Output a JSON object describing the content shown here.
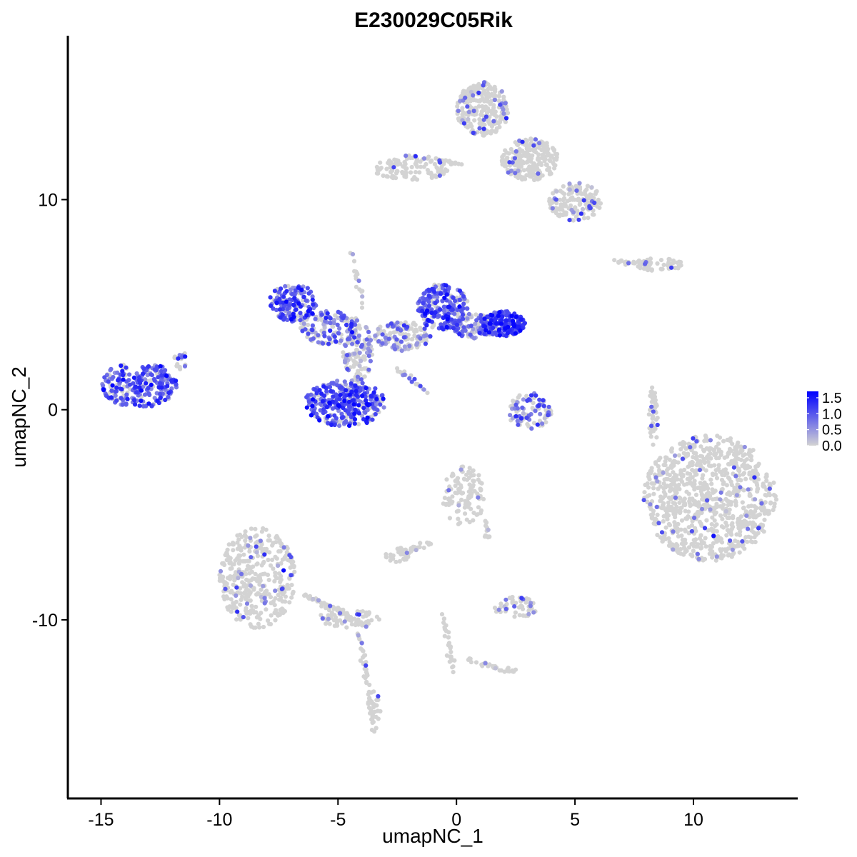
{
  "chart_data": {
    "type": "scatter",
    "title": "E230029C05Rik",
    "xlabel": "umapNC_1",
    "ylabel": "umapNC_2",
    "xlim": [
      -16.4,
      14.4
    ],
    "ylim": [
      -18.5,
      17.8
    ],
    "x_ticks": [
      -15,
      -10,
      -5,
      0,
      5,
      10
    ],
    "x_tick_labels": [
      "-15",
      "-10",
      "-5",
      "0",
      "5",
      "10"
    ],
    "y_ticks": [
      -10,
      0,
      10
    ],
    "y_tick_labels": [
      "-10",
      "0",
      "10"
    ],
    "grid": false,
    "legend_position": "right",
    "colorbar": {
      "min": 0.0,
      "max": 1.7,
      "ticks": [
        0.0,
        0.5,
        1.0,
        1.5
      ],
      "tick_labels": [
        "0.0",
        "0.5",
        "1.0",
        "1.5"
      ],
      "low_color": "#d3d3d3",
      "high_color": "#0000ff"
    },
    "clusters": [
      {
        "cx": -13.4,
        "cy": 1.2,
        "rx": 1.6,
        "ry": 1.1,
        "n": 260,
        "expr": 0.95,
        "frac": 0.75
      },
      {
        "cx": -11.6,
        "cy": 2.4,
        "rx": 0.3,
        "ry": 0.5,
        "n": 18,
        "expr": 0.9,
        "frac": 0.6
      },
      {
        "cx": -6.9,
        "cy": 5.1,
        "rx": 1.0,
        "ry": 0.9,
        "n": 150,
        "expr": 1.0,
        "frac": 0.8
      },
      {
        "cx": -5.3,
        "cy": 3.9,
        "rx": 1.3,
        "ry": 0.8,
        "n": 140,
        "expr": 0.8,
        "frac": 0.65
      },
      {
        "cx": -4.7,
        "cy": 0.3,
        "rx": 1.7,
        "ry": 1.1,
        "n": 330,
        "expr": 1.05,
        "frac": 0.8
      },
      {
        "cx": -4.2,
        "cy": 2.5,
        "rx": 0.6,
        "ry": 1.2,
        "n": 90,
        "expr": 0.7,
        "frac": 0.5
      },
      {
        "cx": -2.3,
        "cy": 3.5,
        "rx": 1.2,
        "ry": 0.7,
        "n": 130,
        "expr": 0.6,
        "frac": 0.4
      },
      {
        "cx": -0.6,
        "cy": 4.9,
        "rx": 1.1,
        "ry": 1.1,
        "n": 220,
        "expr": 0.95,
        "frac": 0.75
      },
      {
        "cx": 0.8,
        "cy": 4.0,
        "rx": 1.0,
        "ry": 0.6,
        "n": 120,
        "expr": 0.8,
        "frac": 0.6
      },
      {
        "cx": 2.0,
        "cy": 4.1,
        "rx": 0.9,
        "ry": 0.6,
        "n": 160,
        "expr": 1.15,
        "frac": 0.85
      },
      {
        "cx": 3.1,
        "cy": -0.1,
        "rx": 0.9,
        "ry": 0.9,
        "n": 90,
        "expr": 0.85,
        "frac": 0.55
      },
      {
        "cx": 1.1,
        "cy": 14.3,
        "rx": 1.1,
        "ry": 1.3,
        "n": 260,
        "expr": 0.7,
        "frac": 0.12
      },
      {
        "cx": 3.1,
        "cy": 11.9,
        "rx": 1.2,
        "ry": 1.0,
        "n": 230,
        "expr": 0.7,
        "frac": 0.1
      },
      {
        "cx": 5.0,
        "cy": 9.9,
        "rx": 1.1,
        "ry": 0.9,
        "n": 160,
        "expr": 0.7,
        "frac": 0.1
      },
      {
        "cx": -1.9,
        "cy": 11.5,
        "rx": 1.6,
        "ry": 0.6,
        "n": 110,
        "expr": 0.7,
        "frac": 0.06
      },
      {
        "cx": -8.4,
        "cy": -8.0,
        "rx": 1.6,
        "ry": 2.4,
        "n": 380,
        "expr": 0.7,
        "frac": 0.09
      },
      {
        "cx": -4.5,
        "cy": -9.9,
        "rx": 1.3,
        "ry": 0.5,
        "n": 60,
        "expr": 0.7,
        "frac": 0.07
      },
      {
        "cx": -3.5,
        "cy": -14.4,
        "rx": 0.3,
        "ry": 1.0,
        "n": 35,
        "expr": 0.7,
        "frac": 0.1
      },
      {
        "cx": 0.3,
        "cy": -4.1,
        "rx": 0.9,
        "ry": 1.4,
        "n": 110,
        "expr": 0.7,
        "frac": 0.08
      },
      {
        "cx": -2.5,
        "cy": -6.9,
        "rx": 0.5,
        "ry": 0.35,
        "n": 30,
        "expr": 0.7,
        "frac": 0.05
      },
      {
        "cx": 2.5,
        "cy": -9.4,
        "rx": 0.9,
        "ry": 0.5,
        "n": 50,
        "expr": 0.7,
        "frac": 0.1
      },
      {
        "cx": 10.7,
        "cy": -4.2,
        "rx": 2.8,
        "ry": 3.0,
        "n": 900,
        "expr": 0.7,
        "frac": 0.06
      },
      {
        "cx": 8.5,
        "cy": 6.9,
        "rx": 1.2,
        "ry": 0.3,
        "n": 60,
        "expr": 0.7,
        "frac": 0.06
      },
      {
        "cx": 8.3,
        "cy": -0.4,
        "rx": 0.2,
        "ry": 1.5,
        "n": 40,
        "expr": 0.7,
        "frac": 0.08
      }
    ],
    "streaks": [
      {
        "x0": -4.4,
        "y0": 7.5,
        "x1": -3.6,
        "y1": 2.6,
        "n": 30,
        "expr": 0.5,
        "frac": 0.15
      },
      {
        "x0": -2.6,
        "y0": 2.0,
        "x1": -1.2,
        "y1": 0.8,
        "n": 22,
        "expr": 0.5,
        "frac": 0.15
      },
      {
        "x0": 0.2,
        "y0": 11.7,
        "x1": -1.2,
        "y1": 11.9,
        "n": 25,
        "expr": 0.6,
        "frac": 0.05
      },
      {
        "x0": 6.7,
        "y0": 7.1,
        "x1": 8.1,
        "y1": 6.8,
        "n": 25,
        "expr": 0.6,
        "frac": 0.08
      },
      {
        "x0": -6.4,
        "y0": -8.8,
        "x1": -3.8,
        "y1": -10.3,
        "n": 60,
        "expr": 0.6,
        "frac": 0.05
      },
      {
        "x0": -4.1,
        "y0": -10.6,
        "x1": -3.6,
        "y1": -14.0,
        "n": 35,
        "expr": 0.6,
        "frac": 0.04
      },
      {
        "x0": -0.6,
        "y0": -9.6,
        "x1": -0.1,
        "y1": -12.4,
        "n": 30,
        "expr": 0.6,
        "frac": 0.1
      },
      {
        "x0": 0.4,
        "y0": -11.9,
        "x1": 2.5,
        "y1": -12.5,
        "n": 30,
        "expr": 0.6,
        "frac": 0.08
      },
      {
        "x0": -1.0,
        "y0": -6.3,
        "x1": -2.4,
        "y1": -6.9,
        "n": 25,
        "expr": 0.6,
        "frac": 0.05
      },
      {
        "x0": 1.3,
        "y0": -5.2,
        "x1": 1.3,
        "y1": -6.2,
        "n": 12,
        "expr": 0.6,
        "frac": 0.1
      }
    ]
  }
}
